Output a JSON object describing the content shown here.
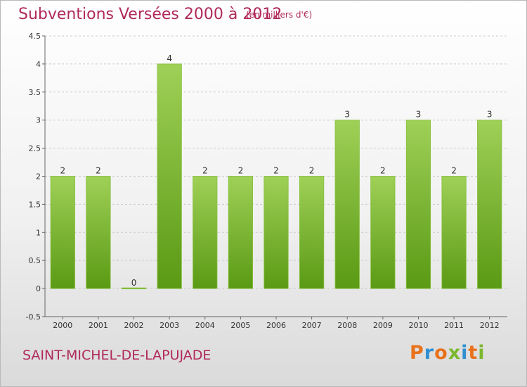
{
  "header": {
    "title": "Subventions Versées 2000 à 2012",
    "units": "(en milliers d'€)"
  },
  "footer": {
    "town": "SAINT-MICHEL-DE-LAPUJADE",
    "logo_text": "Proxiti"
  },
  "colors": {
    "bar_top": "#9fd057",
    "bar_bottom": "#5a9a14",
    "title": "#b0295a",
    "grid": "#cccccc"
  },
  "chart_data": {
    "type": "bar",
    "title": "Subventions Versées 2000 à 2012",
    "subtitle": "(en milliers d'€)",
    "categories": [
      "2000",
      "2001",
      "2002",
      "2003",
      "2004",
      "2005",
      "2006",
      "2007",
      "2008",
      "2009",
      "2010",
      "2011",
      "2012"
    ],
    "values": [
      2,
      2,
      0,
      4,
      2,
      2,
      2,
      2,
      3,
      2,
      3,
      2,
      3
    ],
    "data_labels": [
      "2",
      "2",
      "0",
      "4",
      "2",
      "2",
      "2",
      "2",
      "3",
      "2",
      "3",
      "2",
      "3"
    ],
    "ylim": [
      -0.5,
      4.5
    ],
    "yticks": [
      "4.5",
      "4",
      "3.5",
      "3",
      "2.5",
      "2",
      "1.5",
      "1",
      "0.5",
      "0",
      "-0.5"
    ],
    "ytick_values": [
      4.5,
      4,
      3.5,
      3,
      2.5,
      2,
      1.5,
      1,
      0.5,
      0,
      -0.5
    ],
    "grid": "horizontal dashed",
    "xlabel": "",
    "ylabel": ""
  }
}
